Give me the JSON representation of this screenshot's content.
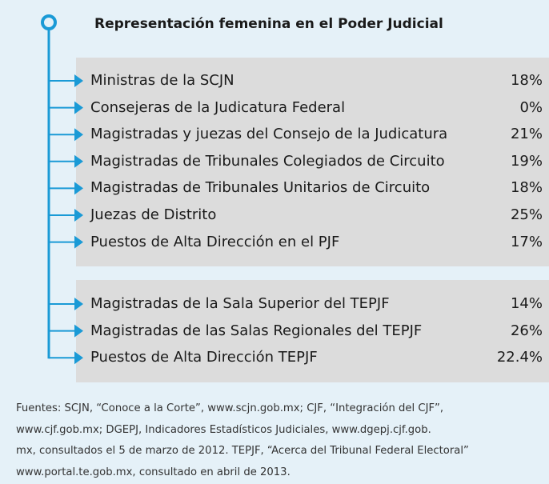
{
  "title": "Representación femenina  en el Poder Judicial",
  "groups": [
    {
      "rows": [
        {
          "label": "Ministras de la SCJN",
          "value": "18%"
        },
        {
          "label": "Consejeras de la Judicatura Federal",
          "value": "0%"
        },
        {
          "label": "Magistradas y juezas del Consejo de la Judicatura",
          "value": "21%"
        },
        {
          "label": "Magistradas de Tribunales Colegiados de Circuito",
          "value": "19%"
        },
        {
          "label": "Magistradas de Tribunales Unitarios de Circuito",
          "value": "18%"
        },
        {
          "label": "Juezas de Distrito",
          "value": "25%"
        },
        {
          "label": "Puestos de Alta Dirección en el PJF",
          "value": "17%"
        }
      ]
    },
    {
      "rows": [
        {
          "label": "Magistradas de la Sala Superior del TEPJF",
          "value": "14%"
        },
        {
          "label": "Magistradas de las Salas Regionales del TEPJF",
          "value": "26%"
        },
        {
          "label": "Puestos de Alta Dirección TEPJF",
          "value": "22.4%"
        }
      ]
    }
  ],
  "source": [
    "Fuentes: SCJN, “Conoce a la Corte”, www.scjn.gob.mx;  CJF, “Integración del CJF”,",
    "www.cjf.gob.mx; DGEPJ, Indicadores Estadísticos Judiciales, www.dgepj.cjf.gob.",
    "mx, consultados el 5 de marzo de 2012. TEPJF, “Acerca del Tribunal Federal Electoral”",
    "www.portal.te.gob.mx, consultado en abril de 2013."
  ]
}
